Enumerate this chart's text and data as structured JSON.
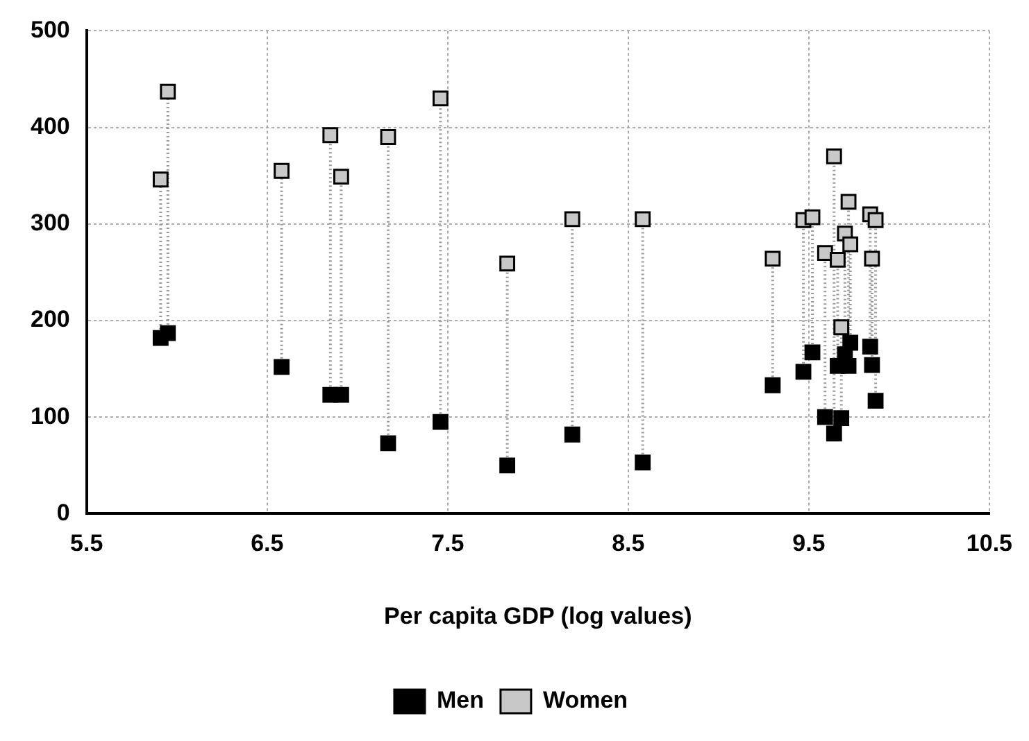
{
  "chart_data": {
    "type": "scatter",
    "xlabel": "Per capita GDP (log values)",
    "x": [
      5.91,
      5.95,
      6.58,
      6.85,
      6.91,
      7.17,
      7.46,
      7.83,
      8.19,
      8.58,
      9.3,
      9.47,
      9.52,
      9.59,
      9.64,
      9.66,
      9.68,
      9.7,
      9.72,
      9.73,
      9.84,
      9.85,
      9.87
    ],
    "series": [
      {
        "name": "Men",
        "color": "#000000",
        "values": [
          182,
          187,
          152,
          123,
          123,
          73,
          95,
          50,
          82,
          53,
          133,
          147,
          167,
          100,
          83,
          153,
          99,
          165,
          153,
          177,
          173,
          154,
          117
        ]
      },
      {
        "name": "Women",
        "color": "#c8c8c8",
        "values": [
          346,
          437,
          355,
          392,
          349,
          390,
          430,
          259,
          305,
          305,
          264,
          304,
          307,
          270,
          370,
          263,
          193,
          290,
          323,
          279,
          310,
          264,
          304
        ]
      },
      {
        "type": "line",
        "color": "#999999",
        "line_style": "dotted",
        "marker": "none",
        "x": [
          5.91,
          5.91
        ],
        "values": [
          182,
          346
        ]
      },
      {
        "type": "line",
        "color": "#999999",
        "line_style": "dotted",
        "marker": "none",
        "x": [
          5.95,
          5.95
        ],
        "values": [
          187,
          437
        ]
      },
      {
        "type": "line",
        "color": "#999999",
        "line_style": "dotted",
        "marker": "none",
        "x": [
          6.58,
          6.58
        ],
        "values": [
          152,
          355
        ]
      },
      {
        "type": "line",
        "color": "#999999",
        "line_style": "dotted",
        "marker": "none",
        "x": [
          6.85,
          6.85
        ],
        "values": [
          123,
          392
        ]
      },
      {
        "type": "line",
        "color": "#999999",
        "line_style": "dotted",
        "marker": "none",
        "x": [
          6.91,
          6.91
        ],
        "values": [
          123,
          349
        ]
      },
      {
        "type": "line",
        "color": "#999999",
        "line_style": "dotted",
        "marker": "none",
        "x": [
          7.17,
          7.17
        ],
        "values": [
          73,
          390
        ]
      },
      {
        "type": "line",
        "color": "#999999",
        "line_style": "dotted",
        "marker": "none",
        "x": [
          7.46,
          7.46
        ],
        "values": [
          95,
          430
        ]
      },
      {
        "type": "line",
        "color": "#999999",
        "line_style": "dotted",
        "marker": "none",
        "x": [
          7.83,
          7.83
        ],
        "values": [
          50,
          259
        ]
      },
      {
        "type": "line",
        "color": "#999999",
        "line_style": "dotted",
        "marker": "none",
        "x": [
          8.19,
          8.19
        ],
        "values": [
          82,
          305
        ]
      },
      {
        "type": "line",
        "color": "#999999",
        "line_style": "dotted",
        "marker": "none",
        "x": [
          8.58,
          8.58
        ],
        "values": [
          53,
          305
        ]
      },
      {
        "type": "line",
        "color": "#999999",
        "line_style": "dotted",
        "marker": "none",
        "x": [
          9.3,
          9.3
        ],
        "values": [
          133,
          264
        ]
      },
      {
        "type": "line",
        "color": "#999999",
        "line_style": "dotted",
        "marker": "none",
        "x": [
          9.47,
          9.47
        ],
        "values": [
          147,
          304
        ]
      },
      {
        "type": "line",
        "color": "#999999",
        "line_style": "dotted",
        "marker": "none",
        "x": [
          9.52,
          9.52
        ],
        "values": [
          167,
          307
        ]
      },
      {
        "type": "line",
        "color": "#999999",
        "line_style": "dotted",
        "marker": "none",
        "x": [
          9.59,
          9.59
        ],
        "values": [
          100,
          270
        ]
      },
      {
        "type": "line",
        "color": "#999999",
        "line_style": "dotted",
        "marker": "none",
        "x": [
          9.64,
          9.64
        ],
        "values": [
          83,
          370
        ]
      },
      {
        "type": "line",
        "color": "#999999",
        "line_style": "dotted",
        "marker": "none",
        "x": [
          9.66,
          9.66
        ],
        "values": [
          153,
          263
        ]
      },
      {
        "type": "line",
        "color": "#999999",
        "line_style": "dotted",
        "marker": "none",
        "x": [
          9.68,
          9.68
        ],
        "values": [
          99,
          193
        ]
      },
      {
        "type": "line",
        "color": "#999999",
        "line_style": "dotted",
        "marker": "none",
        "x": [
          9.7,
          9.7
        ],
        "values": [
          165,
          290
        ]
      },
      {
        "type": "line",
        "color": "#999999",
        "line_style": "dotted",
        "marker": "none",
        "x": [
          9.72,
          9.72
        ],
        "values": [
          153,
          323
        ]
      },
      {
        "type": "line",
        "color": "#999999",
        "line_style": "dotted",
        "marker": "none",
        "x": [
          9.73,
          9.73
        ],
        "values": [
          177,
          279
        ]
      },
      {
        "type": "line",
        "color": "#999999",
        "line_style": "dotted",
        "marker": "none",
        "x": [
          9.84,
          9.84
        ],
        "values": [
          173,
          310
        ]
      },
      {
        "type": "line",
        "color": "#999999",
        "line_style": "dotted",
        "marker": "none",
        "x": [
          9.85,
          9.85
        ],
        "values": [
          154,
          264
        ]
      },
      {
        "type": "line",
        "color": "#999999",
        "line_style": "dotted",
        "marker": "none",
        "x": [
          9.87,
          9.87
        ],
        "values": [
          117,
          304
        ]
      }
    ],
    "xlim": [
      5.5,
      10.5
    ],
    "xticks": [
      5.5,
      6.5,
      7.5,
      8.5,
      9.5,
      10.5
    ],
    "ylim": [
      0,
      500
    ],
    "yticks": [
      0,
      100,
      200,
      300,
      400,
      500
    ],
    "grid": true,
    "legend": "bottom",
    "marker": "square"
  }
}
